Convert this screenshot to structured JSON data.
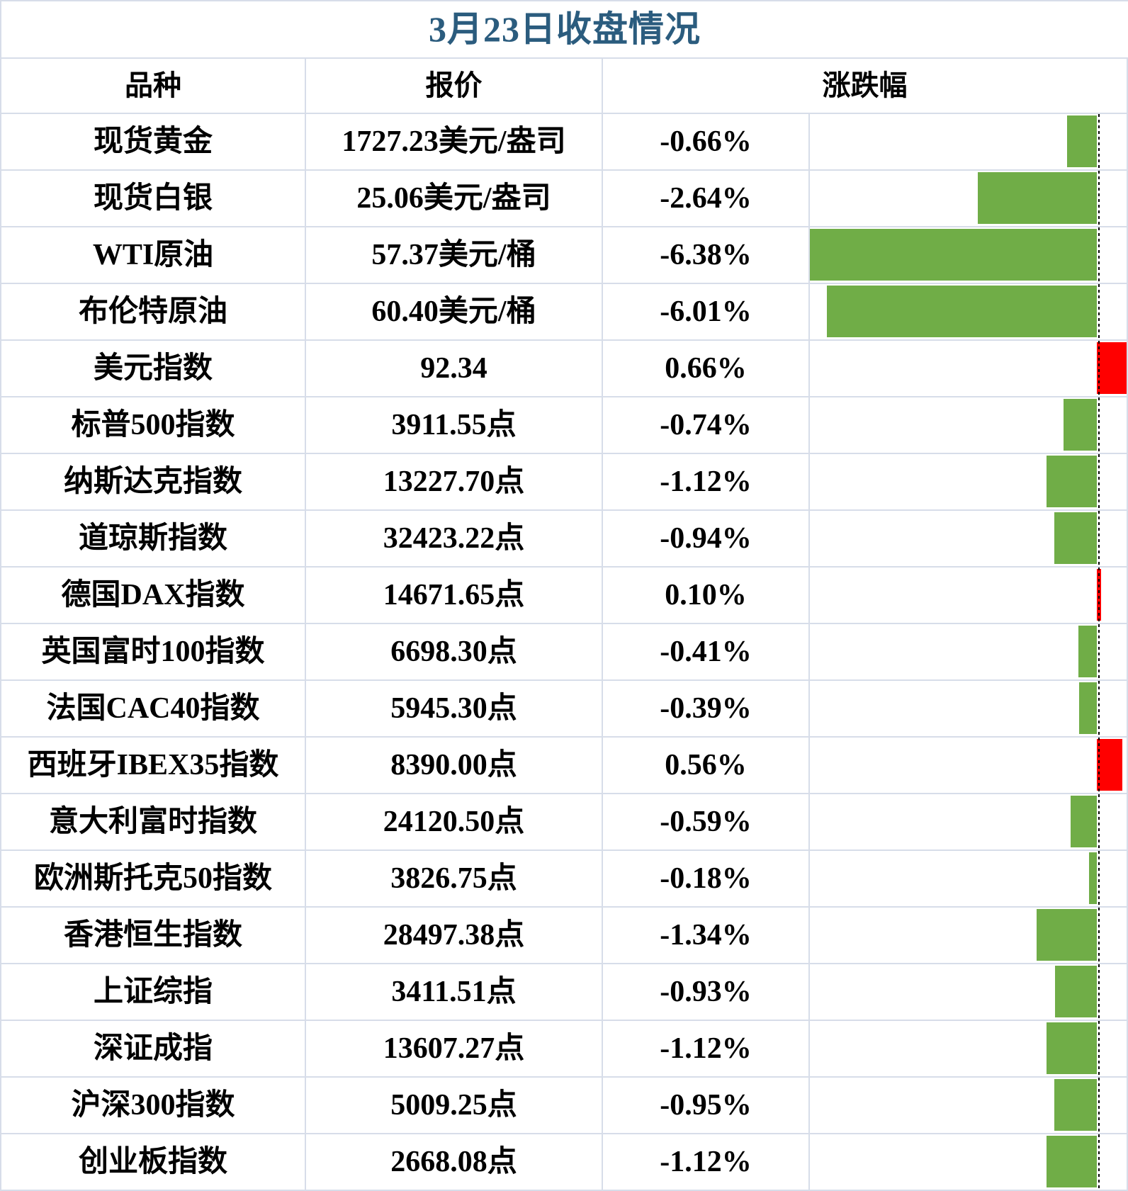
{
  "colors": {
    "title_text": "#2B5C7E",
    "grid_line": "#D7DDE9",
    "body_text": "#000000",
    "bar_negative": "#70AD47",
    "bar_positive": "#FF0000",
    "zero_axis": "#000000",
    "background": "#FFFFFF"
  },
  "chart_data": {
    "type": "table",
    "subtype": "table-with-horizontal-data-bars",
    "title": "3月23日收盘情况",
    "columns": [
      "品种",
      "报价",
      "涨跌幅"
    ],
    "bar_axis": {
      "min": -6.38,
      "max": 0.66,
      "unit": "%",
      "zero_line_style": "dashed-black",
      "negative_color": "#70AD47",
      "positive_color": "#FF0000",
      "legend": "green bar = decline (extends left of dashed zero axis), red bar = gain (extends right)"
    },
    "rows": [
      {
        "name": "现货黄金",
        "quote": "1727.23美元/盎司",
        "change_label": "-0.66%",
        "change_pct": -0.66
      },
      {
        "name": "现货白银",
        "quote": "25.06美元/盎司",
        "change_label": "-2.64%",
        "change_pct": -2.64
      },
      {
        "name": "WTI原油",
        "quote": "57.37美元/桶",
        "change_label": "-6.38%",
        "change_pct": -6.38
      },
      {
        "name": "布伦特原油",
        "quote": "60.40美元/桶",
        "change_label": "-6.01%",
        "change_pct": -6.01
      },
      {
        "name": "美元指数",
        "quote": "92.34",
        "change_label": "0.66%",
        "change_pct": 0.66
      },
      {
        "name": "标普500指数",
        "quote": "3911.55点",
        "change_label": "-0.74%",
        "change_pct": -0.74
      },
      {
        "name": "纳斯达克指数",
        "quote": "13227.70点",
        "change_label": "-1.12%",
        "change_pct": -1.12
      },
      {
        "name": "道琼斯指数",
        "quote": "32423.22点",
        "change_label": "-0.94%",
        "change_pct": -0.94
      },
      {
        "name": "德国DAX指数",
        "quote": "14671.65点",
        "change_label": "0.10%",
        "change_pct": 0.1
      },
      {
        "name": "英国富时100指数",
        "quote": "6698.30点",
        "change_label": "-0.41%",
        "change_pct": -0.41
      },
      {
        "name": "法国CAC40指数",
        "quote": "5945.30点",
        "change_label": "-0.39%",
        "change_pct": -0.39
      },
      {
        "name": "西班牙IBEX35指数",
        "quote": "8390.00点",
        "change_label": "0.56%",
        "change_pct": 0.56
      },
      {
        "name": "意大利富时指数",
        "quote": "24120.50点",
        "change_label": "-0.59%",
        "change_pct": -0.59
      },
      {
        "name": "欧洲斯托克50指数",
        "quote": "3826.75点",
        "change_label": "-0.18%",
        "change_pct": -0.18
      },
      {
        "name": "香港恒生指数",
        "quote": "28497.38点",
        "change_label": "-1.34%",
        "change_pct": -1.34
      },
      {
        "name": "上证综指",
        "quote": "3411.51点",
        "change_label": "-0.93%",
        "change_pct": -0.93
      },
      {
        "name": "深证成指",
        "quote": "13607.27点",
        "change_label": "-1.12%",
        "change_pct": -1.12
      },
      {
        "name": "沪深300指数",
        "quote": "5009.25点",
        "change_label": "-0.95%",
        "change_pct": -0.95
      },
      {
        "name": "创业板指数",
        "quote": "2668.08点",
        "change_label": "-1.12%",
        "change_pct": -1.12
      }
    ]
  }
}
